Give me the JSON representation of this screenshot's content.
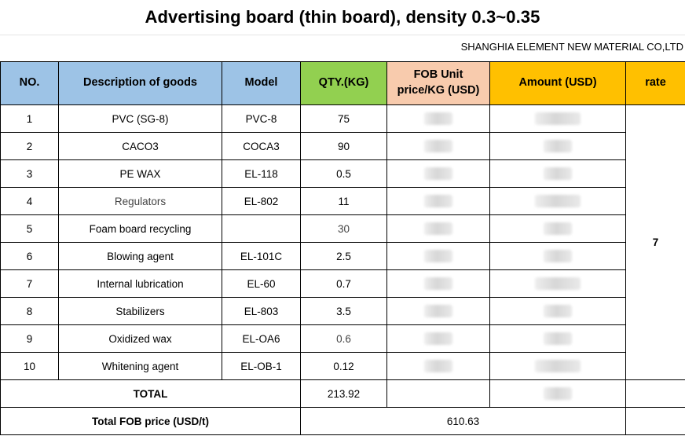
{
  "title": "Advertising board (thin board), density 0.3~0.35",
  "company": "SHANGHIA  ELEMENT NEW MATERIAL CO,LTD",
  "headers": {
    "no": "NO.",
    "description": "Description of goods",
    "model": "Model",
    "qty": "QTY.(KG)",
    "fob_line1": "FOB Unit",
    "fob_line2": "price/KG  (USD)",
    "amount": "Amount  (USD)",
    "rate": "rate"
  },
  "rows": [
    {
      "no": "1",
      "description": "PVC  (SG-8)",
      "model": "PVC-8",
      "qty": "75"
    },
    {
      "no": "2",
      "description": "CACO3",
      "model": "COCA3",
      "qty": "90"
    },
    {
      "no": "3",
      "description": "PE WAX",
      "model": "EL-118",
      "qty": "0.5"
    },
    {
      "no": "4",
      "description": "Regulators",
      "model": "EL-802",
      "qty": "11"
    },
    {
      "no": "5",
      "description": "Foam board recycling",
      "model": "",
      "qty": "30"
    },
    {
      "no": "6",
      "description": "Blowing agent",
      "model": "EL-101C",
      "qty": "2.5"
    },
    {
      "no": "7",
      "description": "Internal lubrication",
      "model": "EL-60",
      "qty": "0.7"
    },
    {
      "no": "8",
      "description": "Stabilizers",
      "model": "EL-803",
      "qty": "3.5"
    },
    {
      "no": "9",
      "description": "Oxidized wax",
      "model": "EL-OA6",
      "qty": "0.6"
    },
    {
      "no": "10",
      "description": "Whitening agent",
      "model": "EL-OB-1",
      "qty": "0.12"
    }
  ],
  "rate_value": "7",
  "total": {
    "label": "TOTAL",
    "qty": "213.92"
  },
  "total_fob": {
    "label": "Total FOB price (USD/t)",
    "value": "610.63"
  },
  "colors": {
    "header_blue": "#9dc3e6",
    "header_green": "#92d050",
    "header_peach": "#f8cbad",
    "header_gold": "#ffc000"
  }
}
